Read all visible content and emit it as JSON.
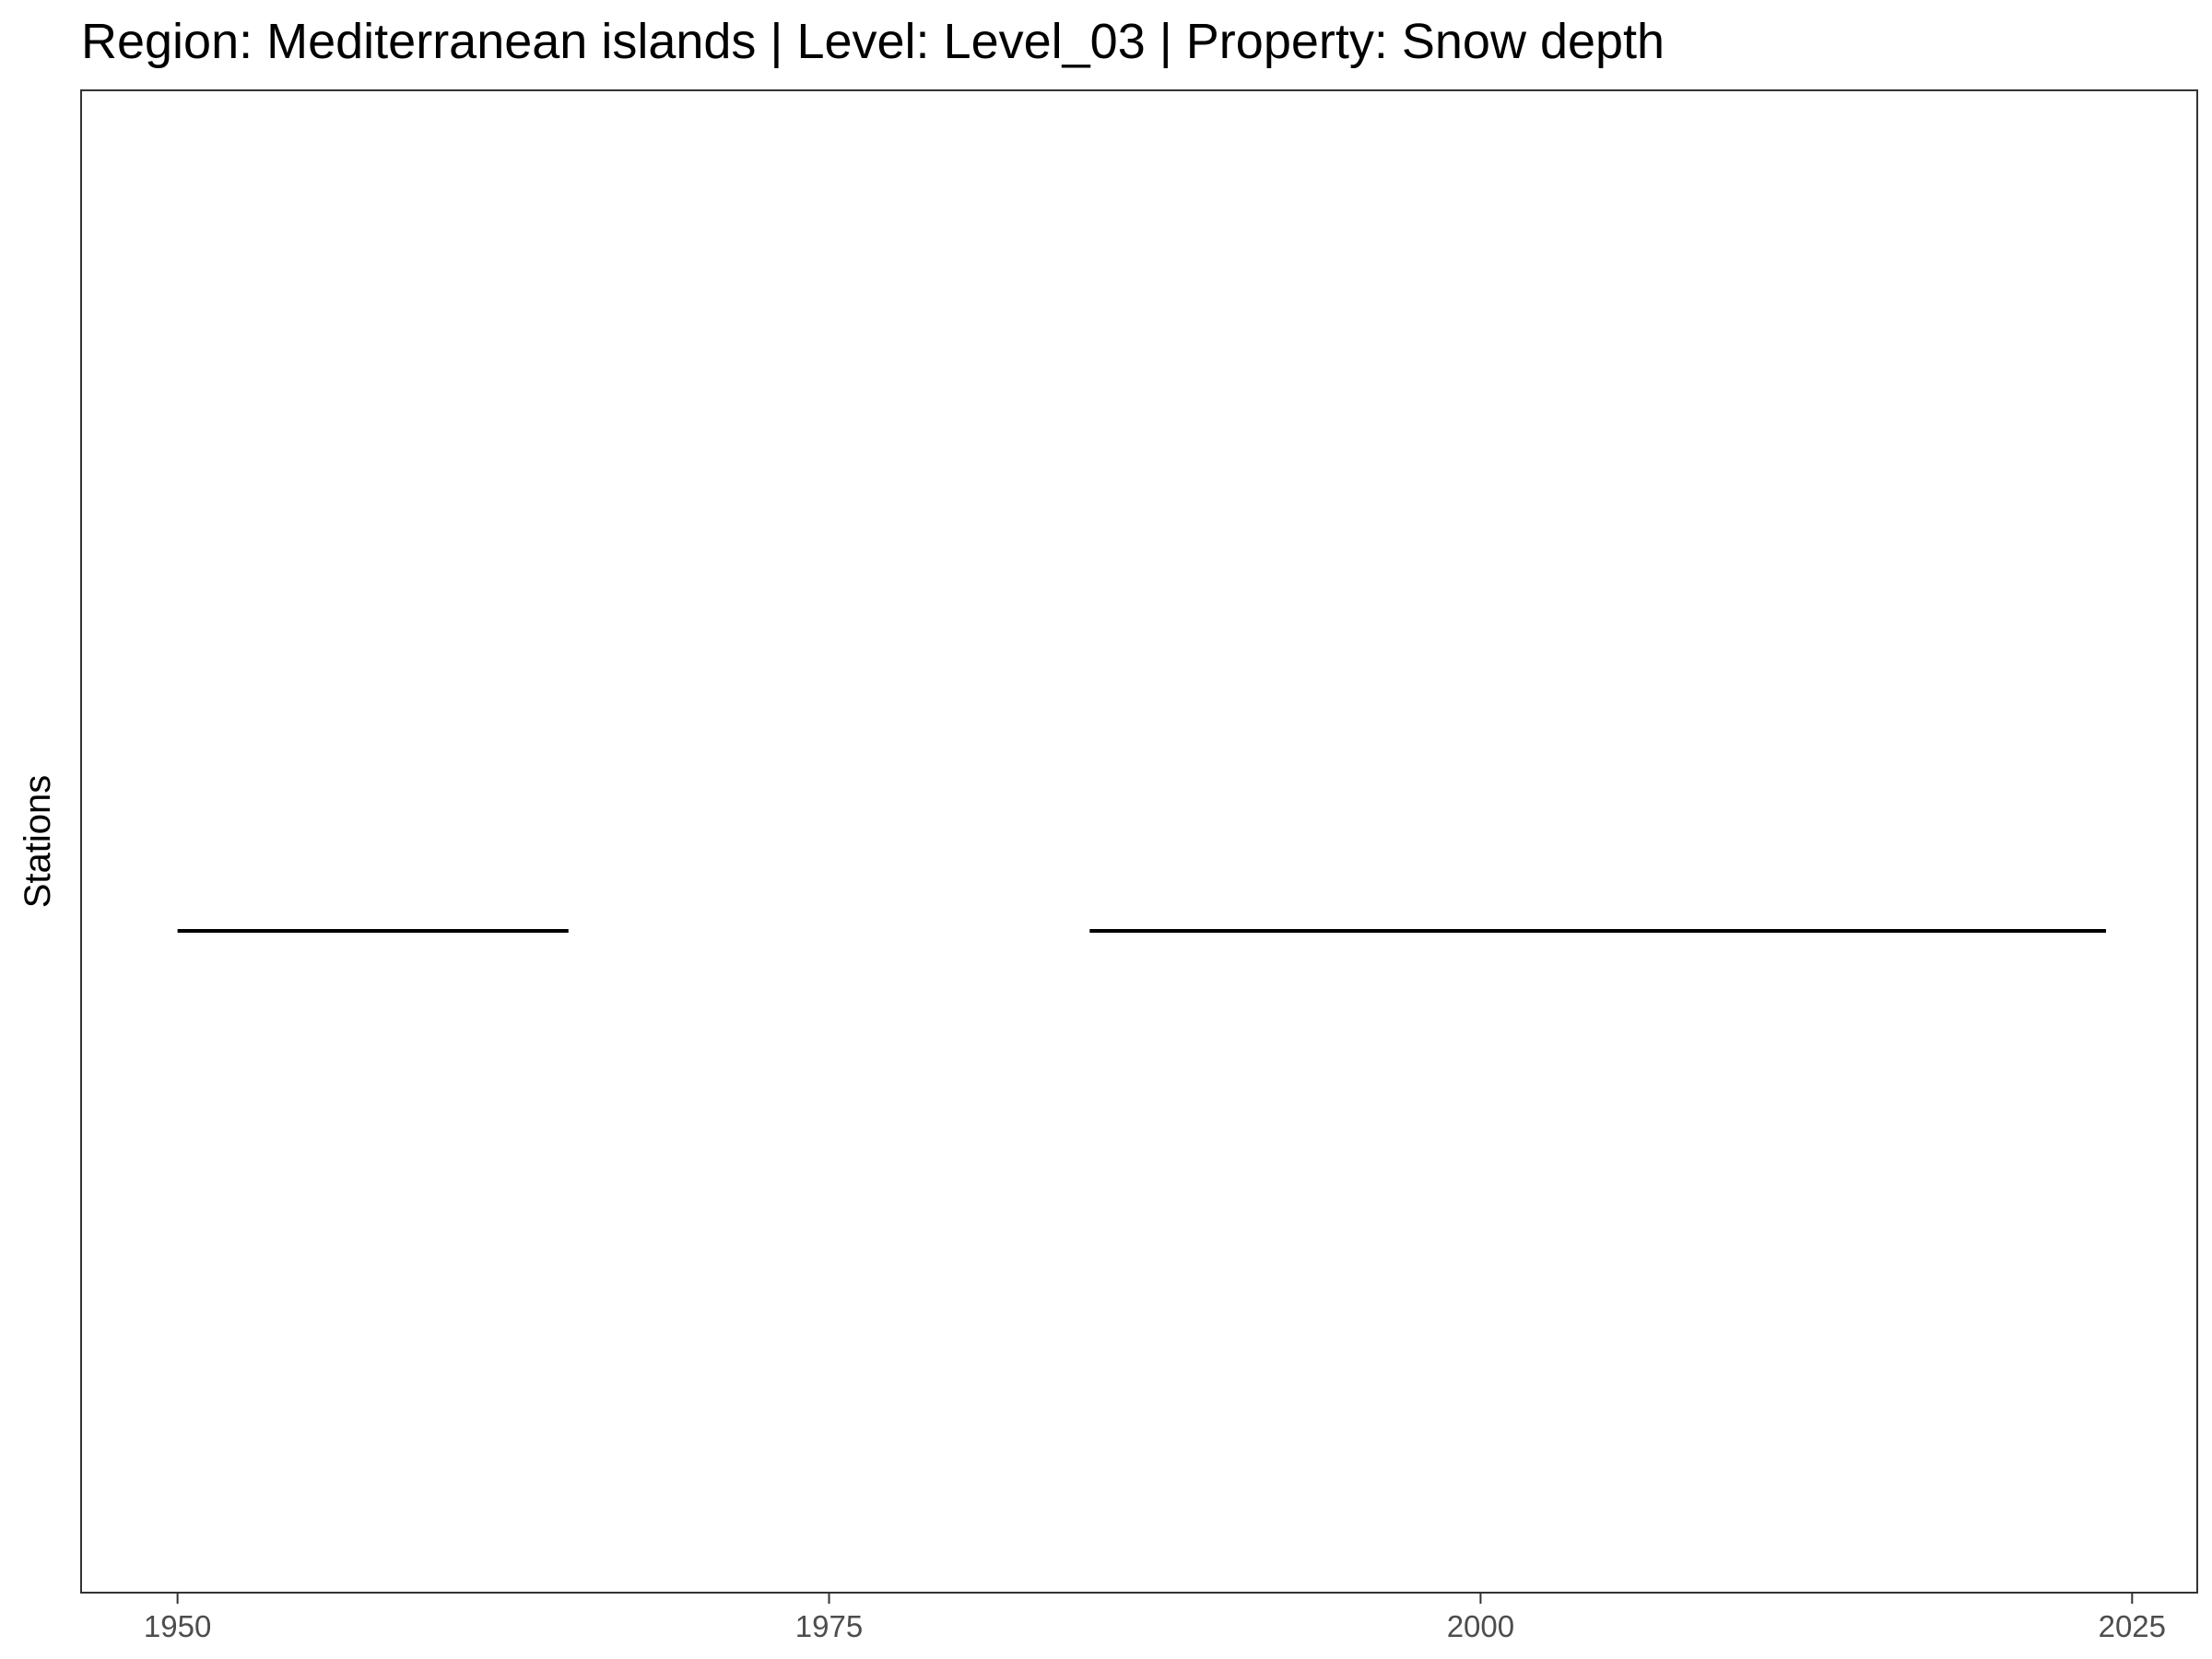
{
  "chart_data": {
    "type": "line",
    "title": "Region: Mediterranean islands | Level: Level_03 | Property: Snow depth",
    "xlabel": "",
    "ylabel": "Stations",
    "xlim": [
      1946.3,
      2027.5
    ],
    "x_ticks": [
      1950,
      1975,
      2000,
      2025
    ],
    "grid": false,
    "series": [
      {
        "segments": [
          [
            1950,
            1965
          ],
          [
            1985,
            2024
          ]
        ]
      }
    ],
    "colors": {
      "line": "#000000",
      "frame": "#333333",
      "tick": "#4d4d4d"
    }
  }
}
